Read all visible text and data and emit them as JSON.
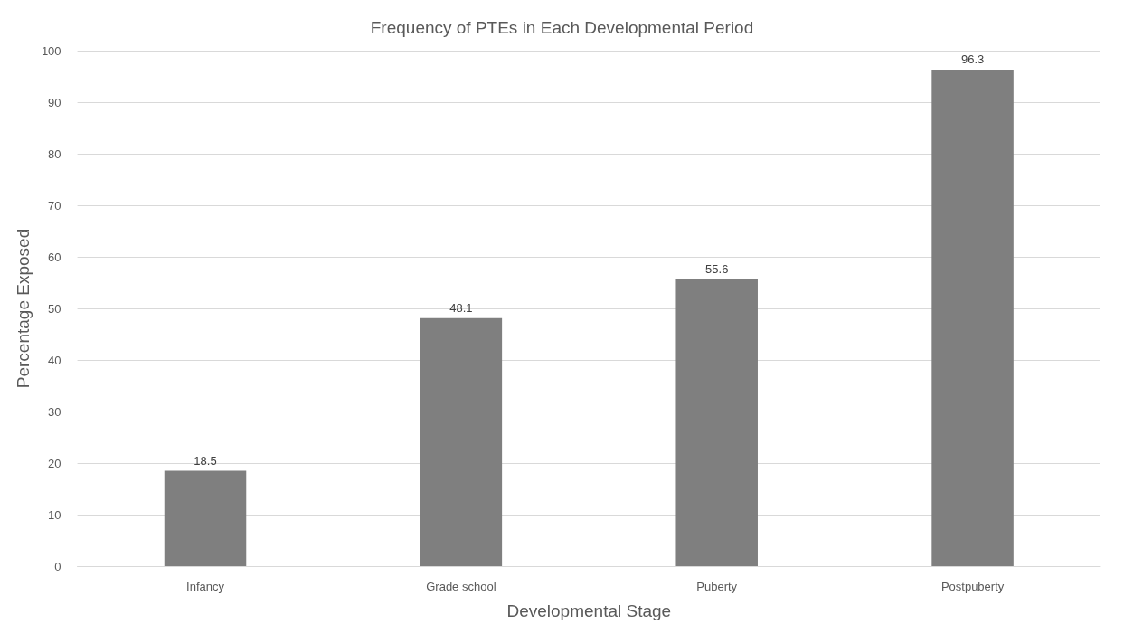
{
  "chart_data": {
    "type": "bar",
    "title": "Frequency of PTEs in Each Developmental Period",
    "xlabel": "Developmental Stage",
    "ylabel": "Percentage Exposed",
    "categories": [
      "Infancy",
      "Grade school",
      "Puberty",
      "Postpuberty"
    ],
    "values": [
      18.5,
      48.1,
      55.6,
      96.3
    ],
    "color": "#7f7f7f",
    "ylim": [
      0,
      100
    ],
    "yticks": [
      0,
      10,
      20,
      30,
      40,
      50,
      60,
      70,
      80,
      90,
      100
    ],
    "grid": "y",
    "data_labels": true
  }
}
